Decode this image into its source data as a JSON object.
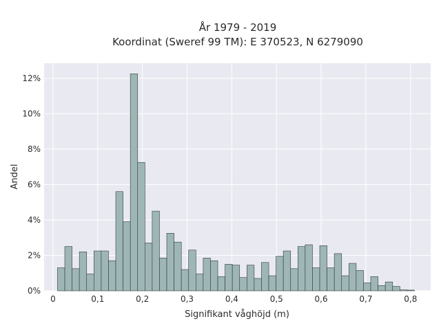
{
  "chart_data": {
    "type": "bar",
    "title": [
      "År 1979 - 2019",
      "Koordinat (Sweref 99 TM): E 370523, N 6279090"
    ],
    "xlabel": "Signifikant våghöjd (m)",
    "ylabel": "Andel",
    "xlim": [
      -0.02,
      0.845
    ],
    "ylim": [
      0,
      0.1285
    ],
    "x_ticks": [
      0,
      0.1,
      0.2,
      0.3,
      0.4,
      0.5,
      0.6,
      0.7,
      0.8
    ],
    "x_tick_labels": [
      "0",
      "0,1",
      "0,2",
      "0,3",
      "0,4",
      "0,5",
      "0,6",
      "0,7",
      "0,8"
    ],
    "y_ticks": [
      0,
      0.02,
      0.04,
      0.06,
      0.08,
      0.1,
      0.12
    ],
    "y_tick_labels": [
      "0%",
      "2%",
      "4%",
      "6%",
      "8%",
      "10%",
      "12%"
    ],
    "grid": true,
    "bin_width": 0.0163,
    "bin_starts": [
      0.01,
      0.0263,
      0.0426,
      0.0589,
      0.0752,
      0.0915,
      0.1078,
      0.1241,
      0.1404,
      0.1567,
      0.173,
      0.1893,
      0.2056,
      0.2219,
      0.2382,
      0.2545,
      0.2708,
      0.2871,
      0.3034,
      0.3197,
      0.336,
      0.3523,
      0.3686,
      0.3849,
      0.4012,
      0.4175,
      0.4338,
      0.4501,
      0.4664,
      0.4827,
      0.499,
      0.5153,
      0.5316,
      0.5479,
      0.5642,
      0.5805,
      0.5968,
      0.6131,
      0.6294,
      0.6457,
      0.662,
      0.6783,
      0.6946,
      0.7109,
      0.7272,
      0.7435,
      0.7598,
      0.7761,
      0.7924
    ],
    "values": [
      0.013,
      0.025,
      0.0125,
      0.022,
      0.0095,
      0.0225,
      0.0225,
      0.017,
      0.056,
      0.039,
      0.1225,
      0.0725,
      0.027,
      0.045,
      0.0185,
      0.0325,
      0.0275,
      0.012,
      0.023,
      0.0095,
      0.0185,
      0.017,
      0.008,
      0.015,
      0.0145,
      0.0075,
      0.0145,
      0.007,
      0.016,
      0.0085,
      0.0195,
      0.0225,
      0.0125,
      0.025,
      0.026,
      0.013,
      0.0255,
      0.013,
      0.021,
      0.0085,
      0.0155,
      0.0115,
      0.0045,
      0.008,
      0.003,
      0.005,
      0.0025,
      0.0005,
      0.0004
    ],
    "colors": {
      "bar_fill": "#9fb6b6",
      "bar_edge": "#2e3a3a",
      "plot_bg": "#e9e9f1",
      "grid": "#ffffff"
    }
  }
}
